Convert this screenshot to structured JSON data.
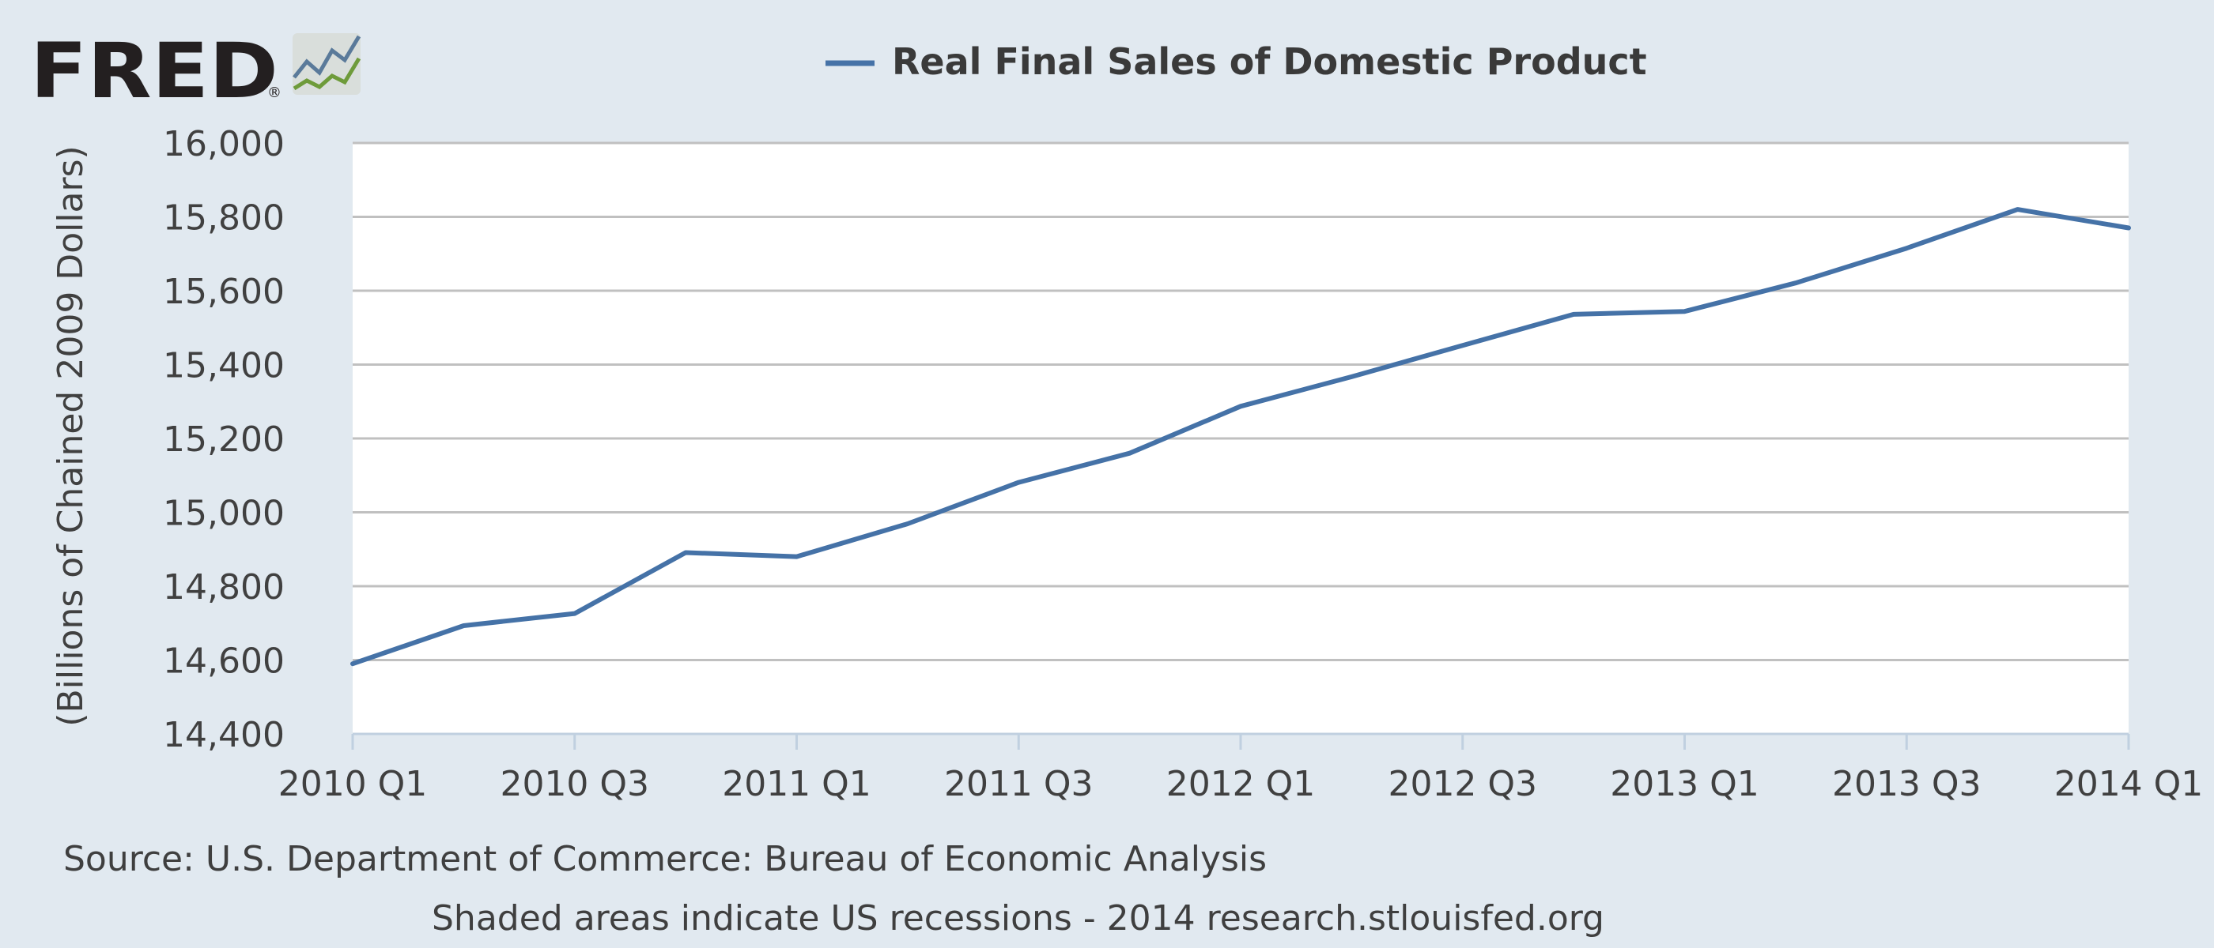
{
  "logo": {
    "text": "FRED",
    "reg": "®"
  },
  "legend": {
    "label": "Real Final Sales of Domestic Product",
    "color": "#4572a7"
  },
  "footer": {
    "source": "Source: U.S. Department of Commerce: Bureau of Economic Analysis",
    "note": "Shaded areas indicate US recessions - 2014 research.stlouisfed.org"
  },
  "colors": {
    "background": "#e1e9f0",
    "plot_bg": "#ffffff",
    "grid": "#c0c0c0",
    "line": "#4572a7"
  },
  "chart_data": {
    "type": "line",
    "ylabel": "(Billions of Chained 2009 Dollars)",
    "ylim": [
      14400,
      16000
    ],
    "yticks": [
      14400,
      14600,
      14800,
      15000,
      15200,
      15400,
      15600,
      15800,
      16000
    ],
    "ytick_labels": [
      "14,400",
      "14,600",
      "14,800",
      "15,000",
      "15,200",
      "15,400",
      "15,600",
      "15,800",
      "16,000"
    ],
    "xtick_labels": [
      "2010 Q1",
      "2010 Q3",
      "2011 Q1",
      "2011 Q3",
      "2012 Q1",
      "2012 Q3",
      "2013 Q1",
      "2013 Q3",
      "2014 Q1"
    ],
    "x": [
      "2010 Q1",
      "2010 Q2",
      "2010 Q3",
      "2010 Q4",
      "2011 Q1",
      "2011 Q2",
      "2011 Q3",
      "2011 Q4",
      "2012 Q1",
      "2012 Q2",
      "2012 Q3",
      "2012 Q4",
      "2013 Q1",
      "2013 Q2",
      "2013 Q3",
      "2013 Q4",
      "2014 Q1"
    ],
    "series": [
      {
        "name": "Real Final Sales of Domestic Product",
        "values": [
          14590,
          14693,
          14726,
          14891,
          14880,
          14969,
          15081,
          15160,
          15287,
          15367,
          15452,
          15536,
          15544,
          15621,
          15715,
          15820,
          15770
        ]
      }
    ],
    "grid": true,
    "legend_position": "top"
  }
}
